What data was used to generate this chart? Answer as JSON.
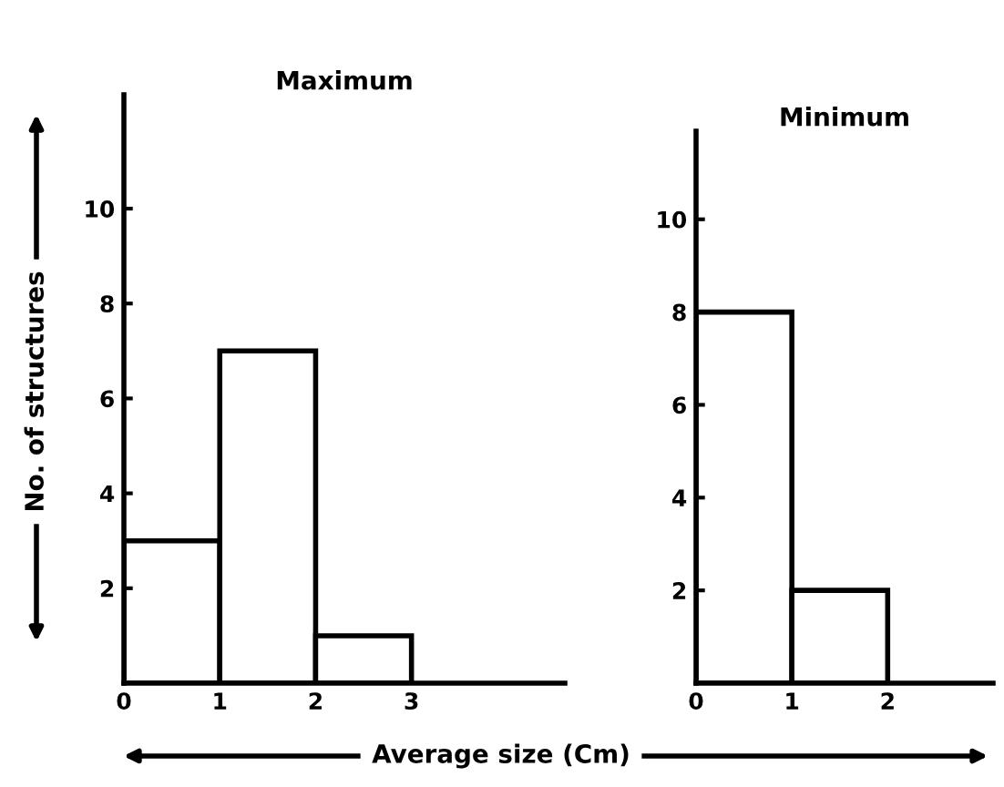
{
  "chart_data": [
    {
      "type": "histogram",
      "title": "Maximum",
      "xlabel": "Average size (Cm)",
      "ylabel": "No. of structures",
      "bins": [
        0,
        1,
        2,
        3
      ],
      "values": [
        3,
        7,
        1
      ],
      "color": "#ffffff",
      "xlim": [
        0,
        4.6
      ],
      "ylim": [
        0,
        12.4
      ],
      "xticks": [
        0,
        1,
        2,
        3
      ],
      "yticks": [
        2,
        4,
        6,
        8,
        10
      ],
      "grid": false,
      "legend": false
    },
    {
      "type": "histogram",
      "title": "Minimum",
      "bins": [
        0,
        1,
        2
      ],
      "values": [
        8,
        2
      ],
      "color": "#ffffff",
      "xlim": [
        0,
        3.1
      ],
      "ylim": [
        0,
        11.9
      ],
      "xticks": [
        0,
        1,
        2
      ],
      "yticks": [
        2,
        4,
        6,
        8,
        10
      ],
      "grid": false,
      "legend": false
    }
  ]
}
